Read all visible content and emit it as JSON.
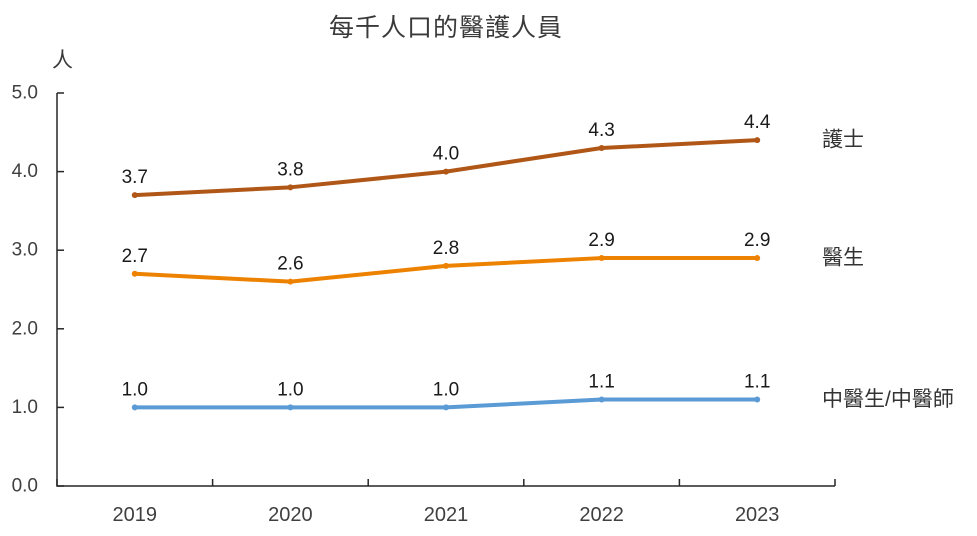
{
  "chart_data": {
    "type": "line",
    "title": "每千人口的醫護人員",
    "ylabel": "人",
    "xlabel": "",
    "categories": [
      "2019",
      "2020",
      "2021",
      "2022",
      "2023"
    ],
    "series": [
      {
        "name": "護士",
        "values": [
          3.7,
          3.8,
          4.0,
          4.3,
          4.4
        ],
        "color": "#B05718"
      },
      {
        "name": "醫生",
        "values": [
          2.7,
          2.6,
          2.8,
          2.9,
          2.9
        ],
        "color": "#ED8100"
      },
      {
        "name": "中醫生/中醫師",
        "values": [
          1.0,
          1.0,
          1.0,
          1.1,
          1.1
        ],
        "color": "#5B9BD5"
      }
    ],
    "ylim": [
      0.0,
      5.0
    ],
    "ytick_labels": [
      "0.0",
      "1.0",
      "2.0",
      "3.0",
      "4.0",
      "5.0"
    ],
    "grid": false,
    "data_labels": true,
    "legend_position": "right-of-line-ends",
    "colors": {
      "axis": "#262626",
      "tick_label": "#3f3f3f",
      "data_label": "#1a1a1a",
      "series_label": "#333333"
    }
  }
}
